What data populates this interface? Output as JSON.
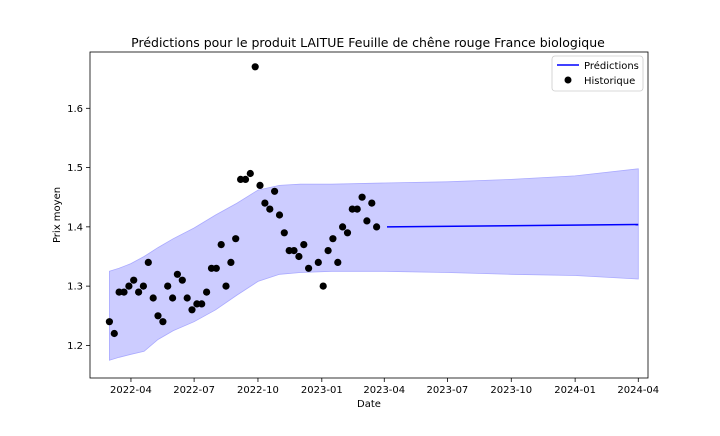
{
  "chart_data": {
    "type": "line",
    "title": "Prédictions pour le produit LAITUE Feuille de chêne rouge France biologique",
    "xlabel": "Date",
    "ylabel": "Prix moyen",
    "xlim": [
      "2022-02-01",
      "2024-04-15"
    ],
    "ylim": [
      1.145,
      1.695
    ],
    "x_ticks": [
      "2022-04",
      "2022-07",
      "2022-10",
      "2023-01",
      "2023-04",
      "2023-07",
      "2023-10",
      "2024-01",
      "2024-04"
    ],
    "y_ticks": [
      1.2,
      1.3,
      1.4,
      1.5,
      1.6
    ],
    "grid": false,
    "legend": {
      "position": "top-right",
      "entries": [
        {
          "label": "Prédictions",
          "marker": "line",
          "color": "#0000ff"
        },
        {
          "label": "Historique",
          "marker": "dot",
          "color": "#000000"
        }
      ]
    },
    "colors": {
      "prediction_line": "#0000ff",
      "interval_fill": "#ccccff",
      "interval_edge": "#aaaaff",
      "history_points": "#000000"
    },
    "series": [
      {
        "name": "Prédictions",
        "kind": "line",
        "points": [
          {
            "x": "2023-04-05",
            "y": 1.4
          },
          {
            "x": "2024-04-01",
            "y": 1.404
          }
        ]
      },
      {
        "kind": "band",
        "points": [
          {
            "x": "2022-03-01",
            "lower": 1.175,
            "upper": 1.325
          },
          {
            "x": "2022-03-15",
            "lower": 1.18,
            "upper": 1.33
          },
          {
            "x": "2022-04-01",
            "lower": 1.185,
            "upper": 1.338
          },
          {
            "x": "2022-04-20",
            "lower": 1.19,
            "upper": 1.35
          },
          {
            "x": "2022-05-10",
            "lower": 1.21,
            "upper": 1.365
          },
          {
            "x": "2022-06-01",
            "lower": 1.225,
            "upper": 1.38
          },
          {
            "x": "2022-07-01",
            "lower": 1.24,
            "upper": 1.398
          },
          {
            "x": "2022-08-01",
            "lower": 1.26,
            "upper": 1.42
          },
          {
            "x": "2022-09-01",
            "lower": 1.285,
            "upper": 1.44
          },
          {
            "x": "2022-10-01",
            "lower": 1.308,
            "upper": 1.462
          },
          {
            "x": "2022-11-01",
            "lower": 1.32,
            "upper": 1.47
          },
          {
            "x": "2022-12-01",
            "lower": 1.323,
            "upper": 1.472
          },
          {
            "x": "2023-01-15",
            "lower": 1.325,
            "upper": 1.472
          },
          {
            "x": "2023-04-01",
            "lower": 1.325,
            "upper": 1.474
          },
          {
            "x": "2023-07-01",
            "lower": 1.323,
            "upper": 1.476
          },
          {
            "x": "2023-10-01",
            "lower": 1.32,
            "upper": 1.48
          },
          {
            "x": "2024-01-01",
            "lower": 1.318,
            "upper": 1.486
          },
          {
            "x": "2024-04-01",
            "lower": 1.312,
            "upper": 1.498
          }
        ]
      },
      {
        "name": "Historique",
        "kind": "scatter",
        "points": [
          {
            "x": "2022-03-01",
            "y": 1.24
          },
          {
            "x": "2022-03-08",
            "y": 1.22
          },
          {
            "x": "2022-03-15",
            "y": 1.29
          },
          {
            "x": "2022-03-22",
            "y": 1.29
          },
          {
            "x": "2022-03-29",
            "y": 1.3
          },
          {
            "x": "2022-04-05",
            "y": 1.31
          },
          {
            "x": "2022-04-12",
            "y": 1.29
          },
          {
            "x": "2022-04-19",
            "y": 1.3
          },
          {
            "x": "2022-04-26",
            "y": 1.34
          },
          {
            "x": "2022-05-03",
            "y": 1.28
          },
          {
            "x": "2022-05-10",
            "y": 1.25
          },
          {
            "x": "2022-05-17",
            "y": 1.24
          },
          {
            "x": "2022-05-24",
            "y": 1.3
          },
          {
            "x": "2022-05-31",
            "y": 1.28
          },
          {
            "x": "2022-06-07",
            "y": 1.32
          },
          {
            "x": "2022-06-14",
            "y": 1.31
          },
          {
            "x": "2022-06-21",
            "y": 1.28
          },
          {
            "x": "2022-06-28",
            "y": 1.26
          },
          {
            "x": "2022-07-05",
            "y": 1.27
          },
          {
            "x": "2022-07-12",
            "y": 1.27
          },
          {
            "x": "2022-07-19",
            "y": 1.29
          },
          {
            "x": "2022-07-26",
            "y": 1.33
          },
          {
            "x": "2022-08-02",
            "y": 1.33
          },
          {
            "x": "2022-08-09",
            "y": 1.37
          },
          {
            "x": "2022-08-16",
            "y": 1.3
          },
          {
            "x": "2022-08-23",
            "y": 1.34
          },
          {
            "x": "2022-08-30",
            "y": 1.38
          },
          {
            "x": "2022-09-06",
            "y": 1.48
          },
          {
            "x": "2022-09-13",
            "y": 1.48
          },
          {
            "x": "2022-09-20",
            "y": 1.49
          },
          {
            "x": "2022-09-27",
            "y": 1.67
          },
          {
            "x": "2022-10-04",
            "y": 1.47
          },
          {
            "x": "2022-10-11",
            "y": 1.44
          },
          {
            "x": "2022-10-18",
            "y": 1.43
          },
          {
            "x": "2022-10-25",
            "y": 1.46
          },
          {
            "x": "2022-11-01",
            "y": 1.42
          },
          {
            "x": "2022-11-08",
            "y": 1.39
          },
          {
            "x": "2022-11-15",
            "y": 1.36
          },
          {
            "x": "2022-11-22",
            "y": 1.36
          },
          {
            "x": "2022-11-29",
            "y": 1.35
          },
          {
            "x": "2022-12-06",
            "y": 1.37
          },
          {
            "x": "2022-12-13",
            "y": 1.33
          },
          {
            "x": "2022-12-27",
            "y": 1.34
          },
          {
            "x": "2023-01-03",
            "y": 1.3
          },
          {
            "x": "2023-01-10",
            "y": 1.36
          },
          {
            "x": "2023-01-17",
            "y": 1.38
          },
          {
            "x": "2023-01-24",
            "y": 1.34
          },
          {
            "x": "2023-01-31",
            "y": 1.4
          },
          {
            "x": "2023-02-07",
            "y": 1.39
          },
          {
            "x": "2023-02-14",
            "y": 1.43
          },
          {
            "x": "2023-02-21",
            "y": 1.43
          },
          {
            "x": "2023-02-28",
            "y": 1.45
          },
          {
            "x": "2023-03-07",
            "y": 1.41
          },
          {
            "x": "2023-03-14",
            "y": 1.44
          },
          {
            "x": "2023-03-21",
            "y": 1.4
          }
        ]
      }
    ]
  }
}
